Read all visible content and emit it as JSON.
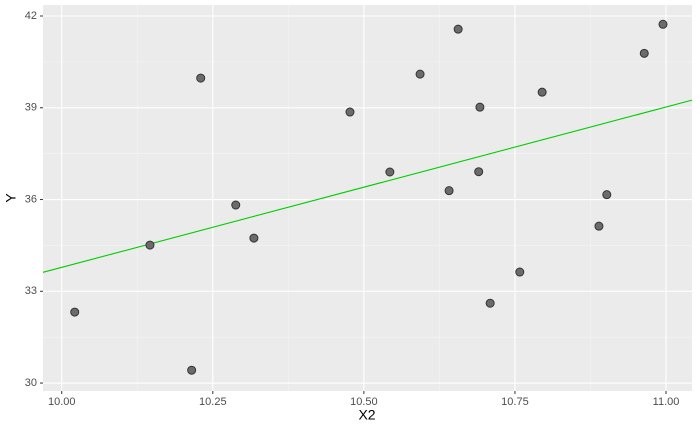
{
  "chart_data": {
    "type": "scatter",
    "x_label": "X2",
    "y_label": "Y",
    "series": [
      {
        "color": "#6b6b6b",
        "x": [
          10.0215,
          10.146,
          10.215,
          10.23,
          10.288,
          10.318,
          10.477,
          10.543,
          10.593,
          10.641,
          10.656,
          10.69,
          10.692,
          10.709,
          10.758,
          10.795,
          10.889,
          10.902,
          10.964,
          10.995
        ],
        "values": [
          32.32,
          34.51,
          30.42,
          39.97,
          35.82,
          34.74,
          38.86,
          36.9,
          40.1,
          36.29,
          41.57,
          36.91,
          39.02,
          32.61,
          33.63,
          39.51,
          35.13,
          36.16,
          40.78,
          41.73
        ]
      }
    ],
    "fit_line": {
      "color": "#00cd00",
      "x": [
        9.969,
        11.043
      ],
      "values": [
        33.62,
        39.25
      ]
    },
    "xlim": [
      9.969,
      11.043
    ],
    "xticks": [
      {
        "value": 10,
        "label": "10.00"
      },
      {
        "value": 10.25,
        "label": "10.25"
      },
      {
        "value": 10.5,
        "label": "10.50"
      },
      {
        "value": 10.75,
        "label": "10.75"
      },
      {
        "value": 11,
        "label": "11.00"
      }
    ],
    "ylim": [
      29.74,
      42.36
    ],
    "yticks": [
      30,
      33,
      36,
      39,
      42
    ],
    "grid": true
  }
}
